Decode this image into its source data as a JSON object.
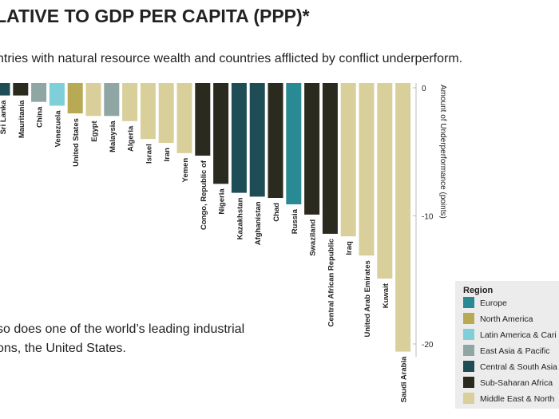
{
  "chart_data": {
    "type": "bar",
    "title": "LATIVE TO GDP PER CAPITA (PPP)*",
    "subtitle": "ntries with natural resource wealth and countries afflicted by conflict underperform.",
    "annotation": [
      "so does one of the world’s leading industrial",
      "ons, the United States."
    ],
    "y_label": "Amount of Underperformance (points)",
    "categories": [
      "Sri Lanka",
      "Mauritania",
      "China",
      "Venezuela",
      "United States",
      "Egypt",
      "Malaysia",
      "Algeria",
      "Israel",
      "Iran",
      "Yemen",
      "Congo, Republic of",
      "Nigeria",
      "Kazakhstan",
      "Afghanistan",
      "Chad",
      "Russia",
      "Swaziland",
      "Central African Republic",
      "Iraq",
      "United Arab Emirates",
      "Kuwait",
      "Saudi Arabia"
    ],
    "values": [
      -0.6,
      -0.6,
      -1.1,
      -1.4,
      -2.0,
      -2.2,
      -2.2,
      -2.6,
      -4.0,
      -4.3,
      -5.1,
      -5.3,
      -7.5,
      -8.2,
      -8.5,
      -8.6,
      -9.1,
      -9.9,
      -11.4,
      -11.6,
      -13.1,
      -14.9,
      -20.6
    ],
    "colors": [
      "#1e4d55",
      "#2b2a1e",
      "#8fa6a5",
      "#7fcfd8",
      "#b8a955",
      "#d9cf9b",
      "#8fa6a5",
      "#d9cf9b",
      "#d9cf9b",
      "#d9cf9b",
      "#d9cf9b",
      "#2b2a1e",
      "#2b2a1e",
      "#1e4d55",
      "#1e4d55",
      "#2b2a1e",
      "#2a8a93",
      "#2b2a1e",
      "#2b2a1e",
      "#d9cf9b",
      "#d9cf9b",
      "#d9cf9b",
      "#d9cf9b"
    ],
    "ylim": [
      -21,
      0
    ],
    "yticks": [
      0,
      -10,
      -20
    ],
    "legend_title": "Region",
    "legend": [
      {
        "name": "Europe",
        "color": "#2a8a93"
      },
      {
        "name": "North America",
        "color": "#b8a955"
      },
      {
        "name": "Latin America & Cari",
        "color": "#7fcfd8"
      },
      {
        "name": "East Asia & Pacific",
        "color": "#8fa6a5"
      },
      {
        "name": "Central & South Asia",
        "color": "#1e4d55"
      },
      {
        "name": "Sub-Saharan Africa",
        "color": "#2b2a1e"
      },
      {
        "name": "Middle East & North",
        "color": "#d9cf9b"
      }
    ]
  }
}
